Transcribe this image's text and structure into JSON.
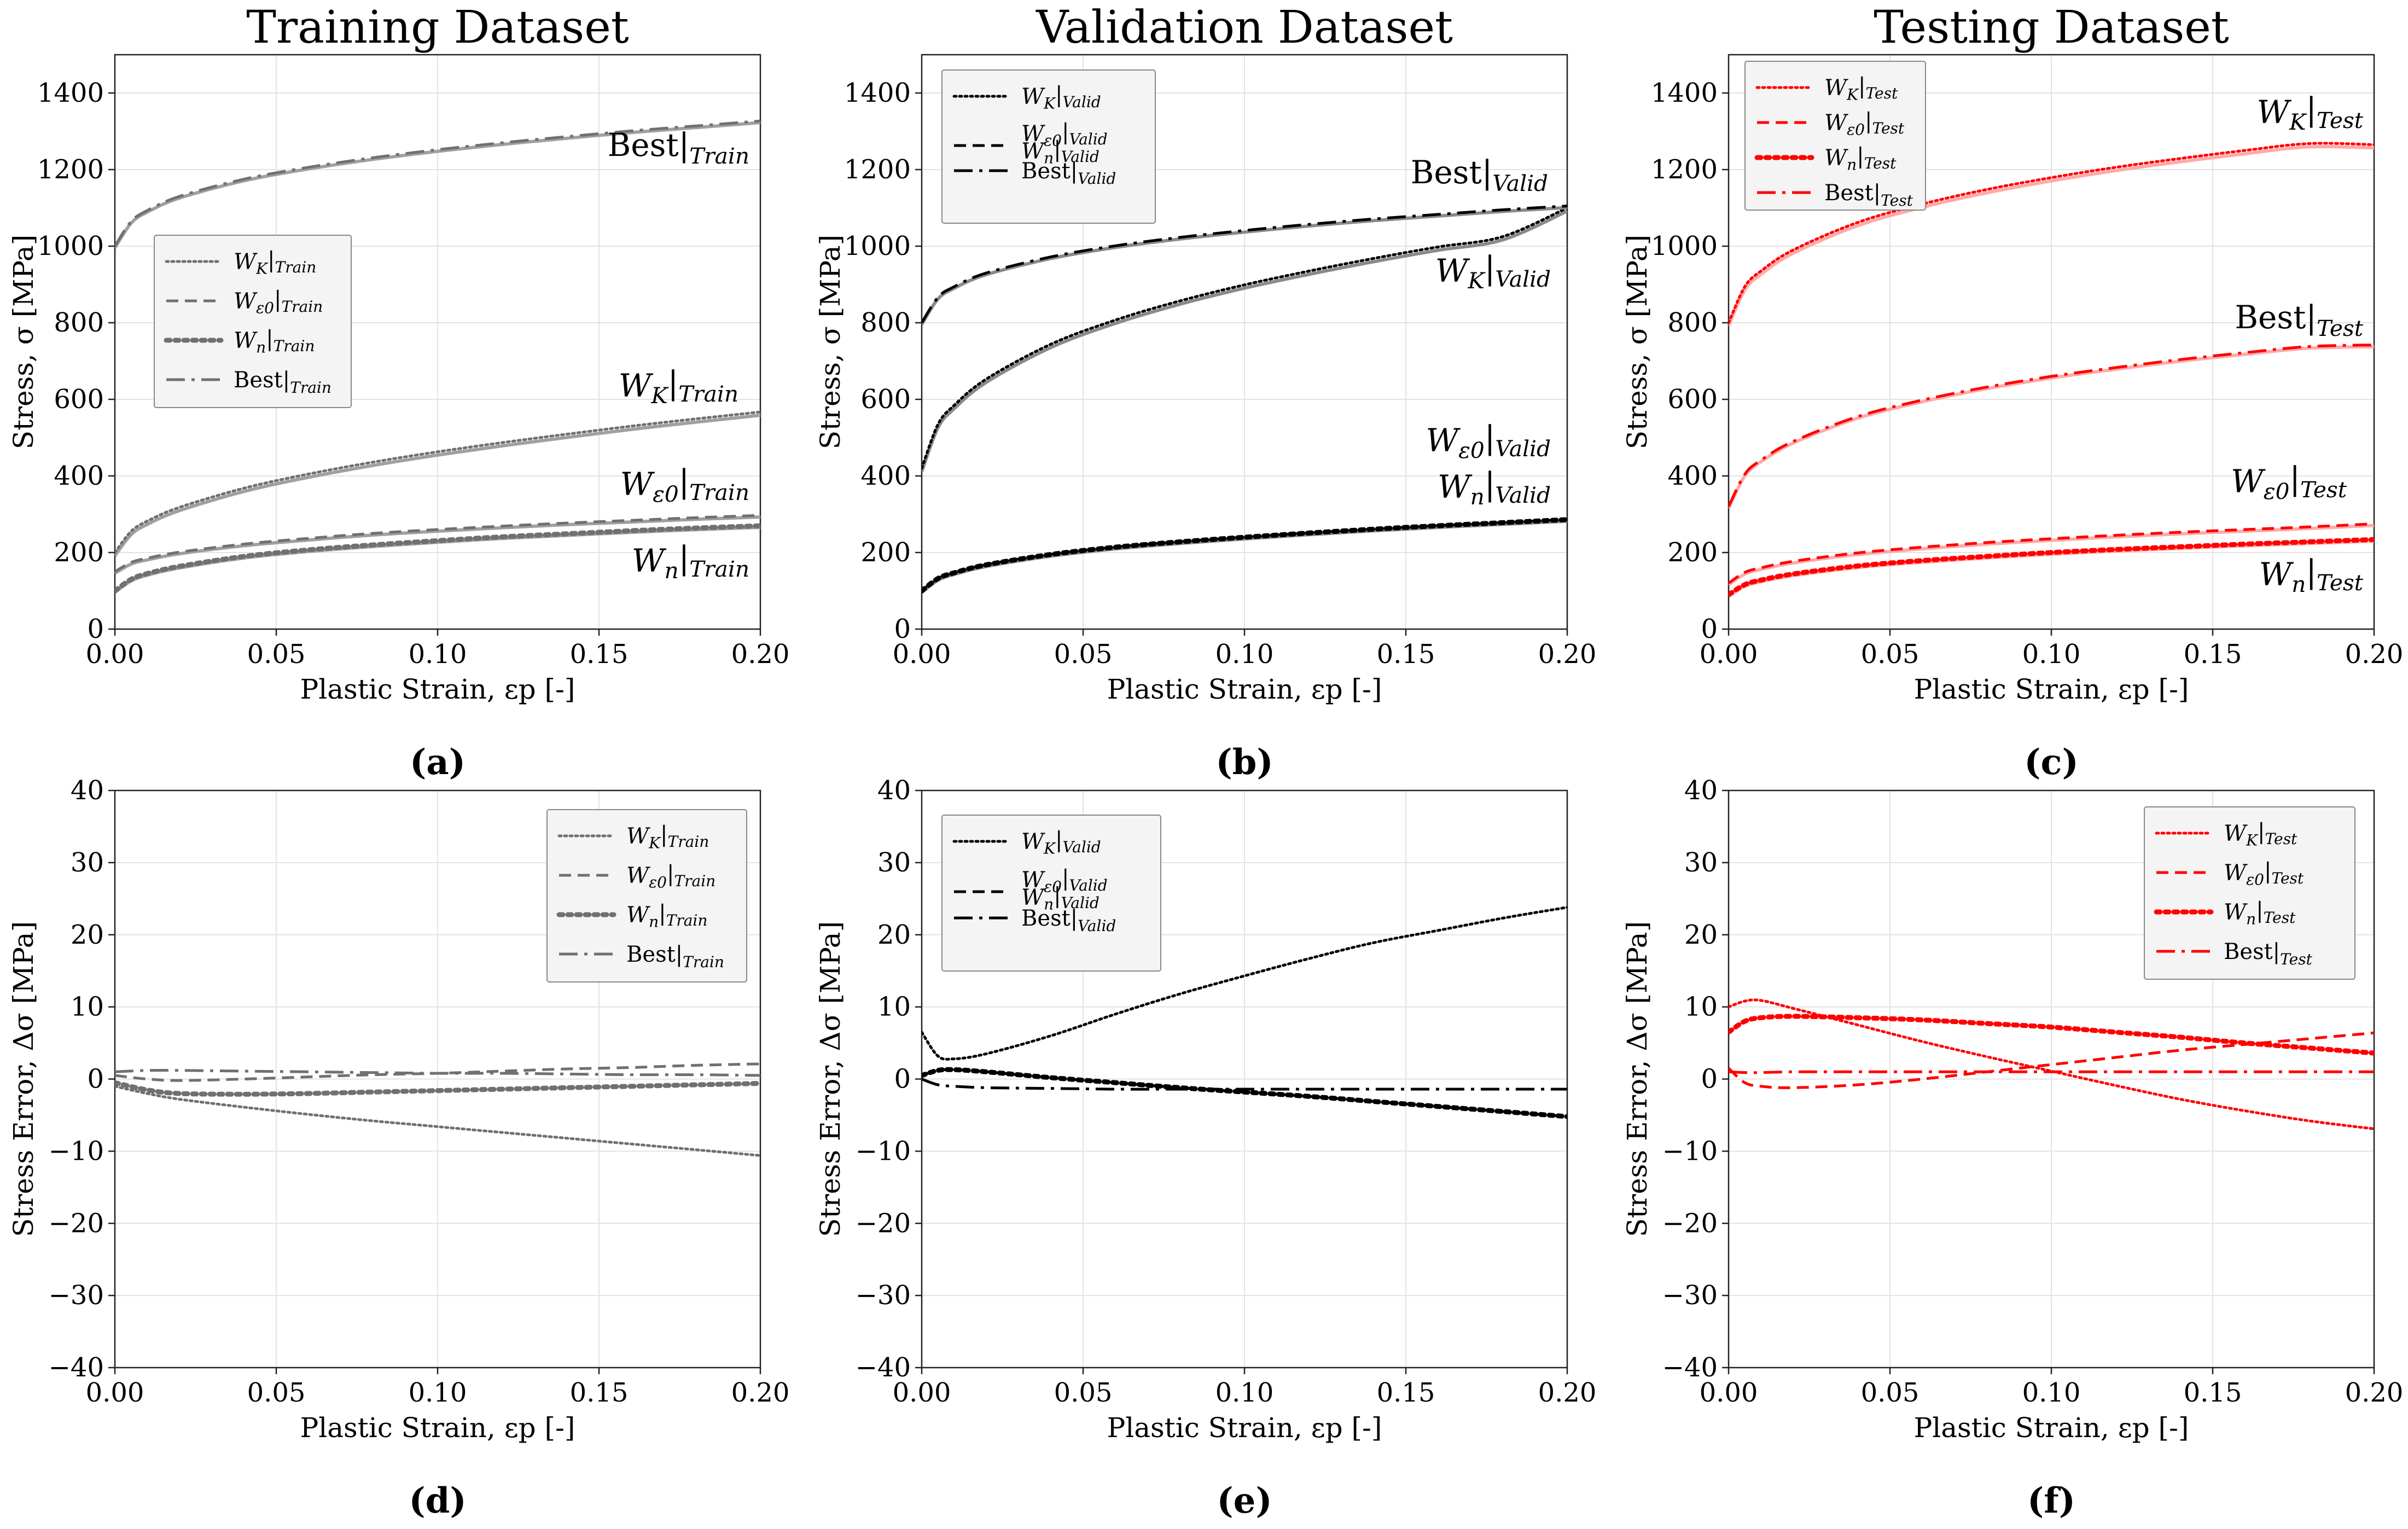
{
  "figure": {
    "columns": [
      "Training Dataset",
      "Validation Dataset",
      "Testing Dataset"
    ],
    "captions": [
      "(a)",
      "(b)",
      "(c)",
      "(d)",
      "(e)",
      "(f)"
    ]
  },
  "colors": {
    "train": "#707070",
    "train_light": "#a0a0a0",
    "valid": "#000000",
    "valid_gray": "#8a8a8a",
    "test": "#ff0000",
    "test_light": "#ffaaaa"
  },
  "chart_data": [
    {
      "id": "a",
      "type": "line",
      "panel": "stress",
      "title": "Training Dataset",
      "caption": "(a)",
      "xlabel": "Plastic Strain, εp [-]",
      "ylabel": "Stress, σ [MPa]",
      "xlim": [
        0,
        0.2
      ],
      "ylim": [
        0,
        1500
      ],
      "xticks": [
        "0.00",
        "0.05",
        "0.10",
        "0.15",
        "0.20"
      ],
      "yticks": [
        "0",
        "200",
        "400",
        "600",
        "800",
        "1000",
        "1200",
        "1400"
      ],
      "grid": true,
      "legend_position": "center-left",
      "color": "#707070",
      "x": [
        0,
        0.005,
        0.01,
        0.02,
        0.04,
        0.06,
        0.08,
        0.1,
        0.12,
        0.14,
        0.16,
        0.18,
        0.2
      ],
      "series": [
        {
          "name": "WK|Train",
          "style": "dotted",
          "values": [
            200,
            255,
            282,
            318,
            368,
            405,
            436,
            463,
            487,
            509,
            530,
            549,
            567
          ]
        },
        {
          "name": "Wε0|Train",
          "style": "dashed",
          "values": [
            150,
            174,
            185,
            201,
            222,
            237,
            250,
            260,
            269,
            277,
            284,
            291,
            297
          ]
        },
        {
          "name": "Wn|Train",
          "style": "dotted-thick",
          "values": [
            100,
            130,
            145,
            164,
            190,
            207,
            220,
            231,
            241,
            249,
            257,
            264,
            270
          ]
        },
        {
          "name": "Best|Train",
          "style": "dashdot",
          "values": [
            1000,
            1064,
            1093,
            1130,
            1175,
            1206,
            1231,
            1252,
            1270,
            1286,
            1301,
            1314,
            1327
          ]
        }
      ],
      "annotations": [
        "Best|Train",
        "WK|Train",
        "Wε0|Train",
        "Wn|Train"
      ]
    },
    {
      "id": "b",
      "type": "line",
      "panel": "stress",
      "title": "Validation Dataset",
      "caption": "(b)",
      "xlabel": "Plastic Strain, εp [-]",
      "ylabel": "Stress, σ [MPa]",
      "xlim": [
        0,
        0.2
      ],
      "ylim": [
        0,
        1500
      ],
      "xticks": [
        "0.00",
        "0.05",
        "0.10",
        "0.15",
        "0.20"
      ],
      "yticks": [
        "0",
        "200",
        "400",
        "600",
        "800",
        "1000",
        "1200",
        "1400"
      ],
      "grid": true,
      "legend_position": "top-left",
      "color": "#000000",
      "x": [
        0,
        0.005,
        0.01,
        0.02,
        0.04,
        0.06,
        0.08,
        0.1,
        0.12,
        0.14,
        0.16,
        0.18,
        0.2
      ],
      "series": [
        {
          "name": "WK|Valid",
          "style": "dotted",
          "values": [
            420,
            534,
            584,
            653,
            744,
            807,
            857,
            899,
            935,
            968,
            998,
            1025,
            1100
          ]
        },
        {
          "name": "Wε0|Valid",
          "style": "dashed",
          "values": [
            100,
            132,
            147,
            168,
            195,
            214,
            228,
            240,
            251,
            261,
            270,
            278,
            286
          ]
        },
        {
          "name": "Wn|Valid",
          "style": "dotted-thick",
          "values": [
            100,
            132,
            147,
            168,
            195,
            214,
            228,
            240,
            251,
            261,
            270,
            278,
            286
          ]
        },
        {
          "name": "Best|Valid",
          "style": "dashdot",
          "values": [
            800,
            866,
            894,
            930,
            972,
            1001,
            1023,
            1041,
            1057,
            1071,
            1083,
            1095,
            1105
          ]
        }
      ],
      "annotations": [
        "Best|Valid",
        "WK|Valid",
        "Wε0|Valid",
        "Wn|Valid"
      ]
    },
    {
      "id": "c",
      "type": "line",
      "panel": "stress",
      "title": "Testing Dataset",
      "caption": "(c)",
      "xlabel": "Plastic Strain, εp [-]",
      "ylabel": "Stress, σ [MPa]",
      "xlim": [
        0,
        0.2
      ],
      "ylim": [
        0,
        1500
      ],
      "xticks": [
        "0.00",
        "0.05",
        "0.10",
        "0.15",
        "0.20"
      ],
      "yticks": [
        "0",
        "200",
        "400",
        "600",
        "800",
        "1000",
        "1200",
        "1400"
      ],
      "grid": true,
      "legend_position": "top-left",
      "color": "#ff0000",
      "x": [
        0,
        0.005,
        0.01,
        0.02,
        0.04,
        0.06,
        0.08,
        0.1,
        0.12,
        0.14,
        0.16,
        0.18,
        0.2
      ],
      "series": [
        {
          "name": "WK|Test",
          "style": "dotted",
          "values": [
            800,
            894,
            935,
            990,
            1062,
            1110,
            1148,
            1179,
            1206,
            1229,
            1250,
            1268,
            1265
          ]
        },
        {
          "name": "Wε0|Test",
          "style": "dashed",
          "values": [
            120,
            148,
            160,
            177,
            199,
            214,
            226,
            236,
            245,
            253,
            260,
            267,
            275
          ]
        },
        {
          "name": "Wn|Test",
          "style": "dotted-thick",
          "values": [
            90,
            116,
            128,
            144,
            165,
            179,
            190,
            200,
            208,
            215,
            222,
            228,
            234
          ]
        },
        {
          "name": "Best|Test",
          "style": "dashdot",
          "values": [
            320,
            404,
            441,
            490,
            555,
            598,
            632,
            660,
            683,
            704,
            722,
            738,
            742
          ]
        }
      ],
      "annotations": [
        "WK|Test",
        "Best|Test",
        "Wε0|Test",
        "Wn|Test"
      ]
    },
    {
      "id": "d",
      "type": "line",
      "panel": "error",
      "caption": "(d)",
      "xlabel": "Plastic Strain, εp [-]",
      "ylabel": "Stress Error, Δσ [MPa]",
      "xlim": [
        0,
        0.2
      ],
      "ylim": [
        -40,
        40
      ],
      "xticks": [
        "0.00",
        "0.05",
        "0.10",
        "0.15",
        "0.20"
      ],
      "yticks": [
        "−40",
        "−30",
        "−20",
        "−10",
        "0",
        "10",
        "20",
        "30",
        "40"
      ],
      "grid": true,
      "legend_position": "top-right",
      "color": "#707070",
      "x": [
        0,
        0.01,
        0.02,
        0.04,
        0.06,
        0.08,
        0.1,
        0.12,
        0.14,
        0.16,
        0.18,
        0.2
      ],
      "series": [
        {
          "name": "WK|Train",
          "style": "dotted",
          "values": [
            -1.0,
            -2.0,
            -2.8,
            -3.9,
            -4.9,
            -5.8,
            -6.6,
            -7.4,
            -8.2,
            -9.0,
            -9.8,
            -10.6
          ]
        },
        {
          "name": "Wε0|Train",
          "style": "dashed",
          "values": [
            0.5,
            0.0,
            -0.2,
            0.0,
            0.3,
            0.6,
            0.8,
            1.1,
            1.4,
            1.6,
            1.9,
            2.1
          ]
        },
        {
          "name": "Wn|Train",
          "style": "dotted-thick",
          "values": [
            -0.5,
            -1.5,
            -2.0,
            -2.1,
            -2.0,
            -1.8,
            -1.6,
            -1.4,
            -1.2,
            -1.0,
            -0.8,
            -0.6
          ]
        },
        {
          "name": "Best|Train",
          "style": "dashdot",
          "values": [
            1.0,
            1.2,
            1.2,
            1.1,
            1.0,
            0.9,
            0.8,
            0.8,
            0.7,
            0.6,
            0.6,
            0.5
          ]
        }
      ]
    },
    {
      "id": "e",
      "type": "line",
      "panel": "error",
      "caption": "(e)",
      "xlabel": "Plastic Strain, εp [-]",
      "ylabel": "Stress Error, Δσ [MPa]",
      "xlim": [
        0,
        0.2
      ],
      "ylim": [
        -40,
        40
      ],
      "xticks": [
        "0.00",
        "0.05",
        "0.10",
        "0.15",
        "0.20"
      ],
      "yticks": [
        "−40",
        "−30",
        "−20",
        "−10",
        "0",
        "10",
        "20",
        "30",
        "40"
      ],
      "grid": true,
      "legend_position": "top-left",
      "color": "#000000",
      "x": [
        0,
        0.005,
        0.01,
        0.02,
        0.04,
        0.06,
        0.08,
        0.1,
        0.12,
        0.14,
        0.16,
        0.18,
        0.2
      ],
      "series": [
        {
          "name": "WK|Valid",
          "style": "dotted",
          "values": [
            6.5,
            3.2,
            2.8,
            3.5,
            6.0,
            9.0,
            11.8,
            14.3,
            16.7,
            18.9,
            20.6,
            22.3,
            23.8
          ]
        },
        {
          "name": "Wε0|Valid",
          "style": "dashed",
          "values": [
            0.5,
            1.2,
            1.3,
            1.0,
            0.2,
            -0.5,
            -1.2,
            -1.8,
            -2.4,
            -3.1,
            -3.8,
            -4.5,
            -5.2
          ]
        },
        {
          "name": "Wn|Valid",
          "style": "dotted-thick",
          "values": [
            0.5,
            1.2,
            1.3,
            1.0,
            0.2,
            -0.5,
            -1.2,
            -1.8,
            -2.4,
            -3.1,
            -3.8,
            -4.5,
            -5.2
          ]
        },
        {
          "name": "Best|Valid",
          "style": "dashdot",
          "values": [
            0.0,
            -0.8,
            -1.0,
            -1.2,
            -1.3,
            -1.4,
            -1.4,
            -1.4,
            -1.4,
            -1.4,
            -1.4,
            -1.4,
            -1.4
          ]
        }
      ]
    },
    {
      "id": "f",
      "type": "line",
      "panel": "error",
      "caption": "(f)",
      "xlabel": "Plastic Strain, εp [-]",
      "ylabel": "Stress Error, Δσ [MPa]",
      "xlim": [
        0,
        0.2
      ],
      "ylim": [
        -40,
        40
      ],
      "xticks": [
        "0.00",
        "0.05",
        "0.10",
        "0.15",
        "0.20"
      ],
      "yticks": [
        "−40",
        "−30",
        "−20",
        "−10",
        "0",
        "10",
        "20",
        "30",
        "40"
      ],
      "grid": true,
      "legend_position": "top-right",
      "color": "#ff0000",
      "x": [
        0,
        0.005,
        0.01,
        0.02,
        0.04,
        0.06,
        0.08,
        0.1,
        0.12,
        0.14,
        0.16,
        0.18,
        0.2
      ],
      "series": [
        {
          "name": "WK|Test",
          "style": "dotted",
          "values": [
            10.0,
            10.8,
            10.9,
            9.8,
            7.5,
            5.2,
            3.1,
            1.1,
            -0.9,
            -2.8,
            -4.4,
            -5.8,
            -6.9
          ]
        },
        {
          "name": "Wε0|Test",
          "style": "dashed",
          "values": [
            1.5,
            -0.5,
            -1.0,
            -1.2,
            -0.8,
            0.0,
            1.0,
            2.0,
            3.0,
            4.0,
            4.8,
            5.6,
            6.4
          ]
        },
        {
          "name": "Wn|Test",
          "style": "dotted-thick",
          "values": [
            6.5,
            8.0,
            8.5,
            8.7,
            8.5,
            8.2,
            7.7,
            7.2,
            6.5,
            5.8,
            5.0,
            4.3,
            3.6
          ]
        },
        {
          "name": "Best|Test",
          "style": "dashdot",
          "values": [
            1.0,
            0.9,
            0.9,
            1.0,
            1.0,
            1.0,
            1.0,
            1.0,
            1.0,
            1.0,
            1.0,
            1.0,
            1.0
          ]
        }
      ]
    }
  ]
}
